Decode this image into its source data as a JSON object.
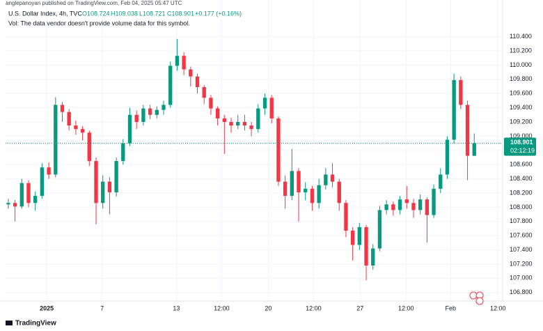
{
  "chart_data": {
    "type": "candlestick",
    "publisher": "anglepanoyan published on TradingView.com, Feb 04, 2025 05:47 UTC",
    "symbol": "U.S. Dollar Index, 4h, TVC",
    "legend": {
      "open": "O108.724",
      "high": "H109.038",
      "low": "L108.721",
      "close": "C108.901",
      "change": "+0.177 (+0.16%)"
    },
    "volume_note": "Vol: The data vendor doesn't provide volume data for this symbol.",
    "countdown": "02:12:19",
    "logo": "TradingView",
    "up_color": "#089981",
    "down_color": "#f23645",
    "open": [
      108.04,
      108.06,
      108.01,
      108.34,
      108.06,
      108.16,
      108.56,
      108.46,
      109.44,
      109.34,
      109.15,
      109.1,
      109.05,
      108.65,
      108.06,
      108.36,
      108.21,
      108.65,
      108.9,
      109.3,
      109.2,
      109.39,
      109.3,
      109.37,
      109.44,
      109.99,
      110.13,
      109.94,
      109.84,
      109.69,
      109.54,
      109.39,
      109.25,
      109.2,
      109.15,
      109.2,
      109.15,
      109.1,
      109.39,
      109.54,
      109.25,
      108.36,
      108.16,
      108.51,
      108.21,
      108.26,
      108.06,
      108.31,
      108.46,
      108.36,
      108.06,
      107.67,
      107.47,
      107.72,
      107.18,
      107.42,
      107.96,
      108.04,
      107.96,
      108.11,
      108.06,
      107.96,
      108.11,
      107.89,
      108.26,
      108.46,
      108.95,
      109.79,
      109.44,
      108.724
    ],
    "high": [
      108.12,
      108.1,
      108.4,
      108.38,
      108.22,
      108.62,
      108.63,
      109.55,
      109.48,
      109.38,
      109.22,
      109.14,
      109.08,
      108.7,
      108.45,
      108.42,
      108.7,
      108.96,
      109.4,
      109.36,
      109.44,
      109.44,
      109.42,
      109.5,
      110.05,
      110.37,
      110.18,
      109.98,
      109.88,
      109.72,
      109.58,
      109.42,
      109.3,
      109.26,
      109.3,
      109.3,
      109.2,
      109.45,
      109.6,
      109.58,
      109.28,
      108.45,
      108.82,
      108.55,
      108.35,
      108.3,
      108.4,
      108.55,
      108.62,
      108.4,
      108.1,
      107.72,
      107.78,
      107.75,
      107.48,
      108.02,
      108.1,
      108.08,
      108.16,
      108.3,
      108.12,
      108.18,
      108.14,
      108.32,
      108.55,
      109.0,
      109.88,
      109.84,
      109.5,
      109.038
    ],
    "low": [
      107.98,
      107.8,
      107.98,
      108.0,
      107.95,
      108.12,
      108.4,
      108.42,
      109.2,
      109.08,
      109.02,
      108.94,
      108.58,
      107.76,
      107.98,
      107.9,
      108.15,
      108.6,
      108.86,
      109.1,
      109.15,
      109.24,
      109.25,
      109.3,
      109.4,
      109.92,
      109.86,
      109.7,
      109.6,
      109.45,
      109.3,
      109.15,
      108.75,
      109.05,
      109.1,
      109.08,
      109.0,
      109.05,
      109.3,
      109.18,
      108.3,
      107.98,
      108.1,
      107.8,
      108.1,
      107.95,
      107.98,
      108.25,
      108.28,
      107.95,
      107.58,
      107.25,
      107.4,
      106.97,
      107.12,
      107.38,
      107.9,
      107.88,
      107.9,
      107.98,
      107.85,
      107.9,
      107.5,
      107.85,
      108.2,
      108.4,
      108.9,
      109.38,
      108.38,
      108.721
    ],
    "close": [
      108.06,
      108.01,
      108.34,
      108.06,
      108.16,
      108.56,
      108.46,
      109.44,
      109.34,
      109.15,
      109.1,
      109.05,
      108.65,
      108.06,
      108.36,
      108.21,
      108.65,
      108.9,
      109.3,
      109.2,
      109.39,
      109.3,
      109.37,
      109.44,
      109.99,
      110.13,
      109.94,
      109.84,
      109.69,
      109.54,
      109.39,
      109.25,
      109.2,
      109.15,
      109.2,
      109.15,
      109.1,
      109.39,
      109.54,
      109.25,
      108.36,
      108.16,
      108.51,
      108.21,
      108.26,
      108.06,
      108.31,
      108.46,
      108.36,
      108.06,
      107.67,
      107.47,
      107.72,
      107.18,
      107.42,
      107.96,
      108.04,
      107.96,
      108.11,
      108.06,
      107.96,
      108.11,
      107.89,
      108.26,
      108.46,
      108.95,
      109.79,
      109.44,
      108.724,
      108.901
    ],
    "xlim": [
      -0.4,
      73.2
    ],
    "xticks": [
      {
        "value": 5.7,
        "label": "2025"
      },
      {
        "value": 13.9,
        "label": "7"
      },
      {
        "value": 24.9,
        "label": "13"
      },
      {
        "value": 31.6,
        "label": "12:00"
      },
      {
        "value": 38.5,
        "label": "20"
      },
      {
        "value": 45.2,
        "label": "12:00"
      },
      {
        "value": 52.1,
        "label": "27"
      },
      {
        "value": 58.9,
        "label": "12:00"
      },
      {
        "value": 65.5,
        "label": "Feb"
      },
      {
        "value": 72.5,
        "label": "12:00"
      }
    ],
    "ylim": [
      106.68,
      110.72
    ],
    "yticks": [
      {
        "value": 106.8,
        "label": "106.800"
      },
      {
        "value": 107.0,
        "label": "107.000"
      },
      {
        "value": 107.2,
        "label": "107.200"
      },
      {
        "value": 107.4,
        "label": "107.400"
      },
      {
        "value": 107.6,
        "label": "107.600"
      },
      {
        "value": 107.8,
        "label": "107.800"
      },
      {
        "value": 108.0,
        "label": "108.000"
      },
      {
        "value": 108.2,
        "label": "108.200"
      },
      {
        "value": 108.4,
        "label": "108.400"
      },
      {
        "value": 108.6,
        "label": "108.600"
      },
      {
        "value": 108.8,
        "label": "108.800"
      },
      {
        "value": 109.0,
        "label": "109.000"
      },
      {
        "value": 109.2,
        "label": "109.200"
      },
      {
        "value": 109.4,
        "label": "109.400"
      },
      {
        "value": 109.6,
        "label": "109.600"
      },
      {
        "value": 109.8,
        "label": "109.800"
      },
      {
        "value": 110.0,
        "label": "110.000"
      },
      {
        "value": 110.2,
        "label": "110.200"
      },
      {
        "value": 110.4,
        "label": "110.400"
      }
    ],
    "grid": true
  }
}
